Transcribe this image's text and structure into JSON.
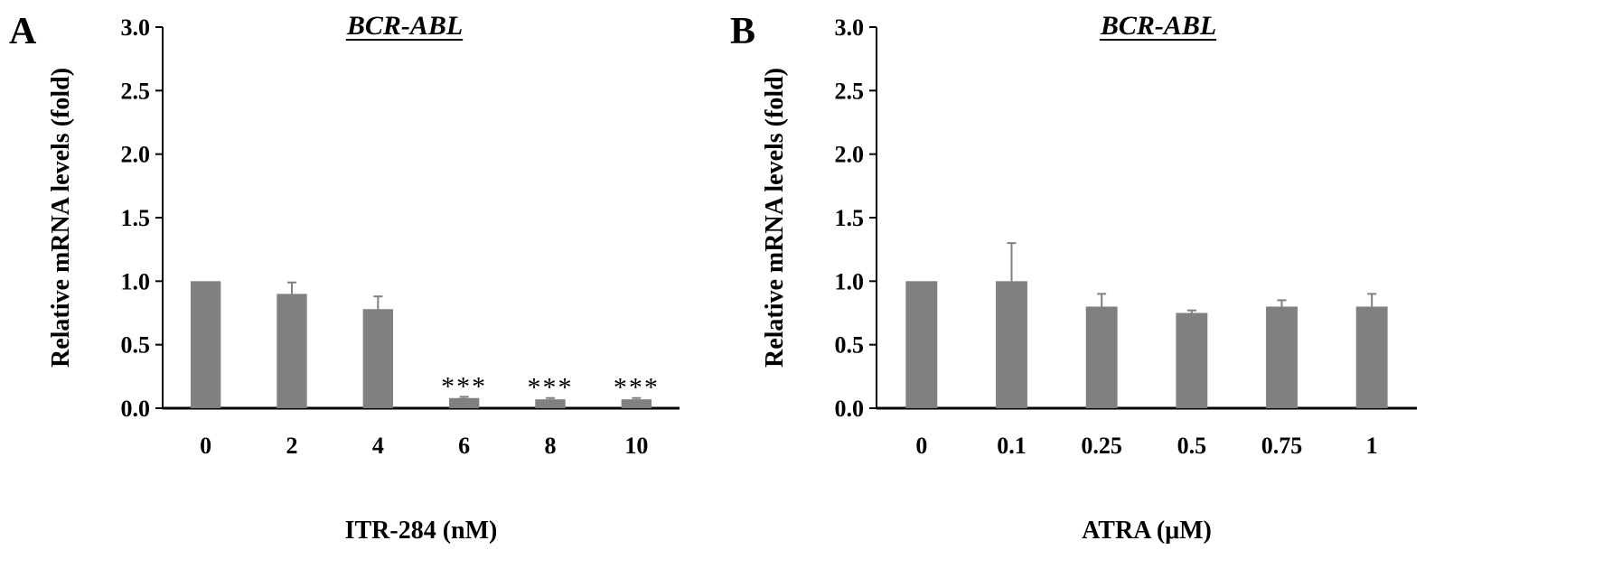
{
  "chart_data": [
    {
      "type": "bar",
      "panel_label": "A",
      "title": "BCR-ABL",
      "xlabel": "ITR-284 (nM)",
      "ylabel": "Relative mRNA levels (fold)",
      "ylim": [
        0,
        3.0
      ],
      "yticks": [
        "0.0",
        "0.5",
        "1.0",
        "1.5",
        "2.0",
        "2.5",
        "3.0"
      ],
      "categories": [
        "0",
        "2",
        "4",
        "6",
        "8",
        "10"
      ],
      "values": [
        1.0,
        0.9,
        0.78,
        0.08,
        0.07,
        0.07
      ],
      "errors": [
        0.0,
        0.09,
        0.1,
        0.01,
        0.01,
        0.01
      ],
      "significance": [
        "",
        "",
        "",
        "***",
        "***",
        "***"
      ],
      "bar_color": "#808080"
    },
    {
      "type": "bar",
      "panel_label": "B",
      "title": "BCR-ABL",
      "xlabel": "ATRA (μM)",
      "ylabel": "Relative mRNA levels (fold)",
      "ylim": [
        0,
        3.0
      ],
      "yticks": [
        "0.0",
        "0.5",
        "1.0",
        "1.5",
        "2.0",
        "2.5",
        "3.0"
      ],
      "categories": [
        "0",
        "0.1",
        "0.25",
        "0.5",
        "0.75",
        "1"
      ],
      "values": [
        1.0,
        1.0,
        0.8,
        0.75,
        0.8,
        0.8
      ],
      "errors": [
        0.0,
        0.3,
        0.1,
        0.02,
        0.05,
        0.1
      ],
      "significance": [
        "",
        "",
        "",
        "",
        "",
        ""
      ],
      "bar_color": "#808080"
    }
  ]
}
